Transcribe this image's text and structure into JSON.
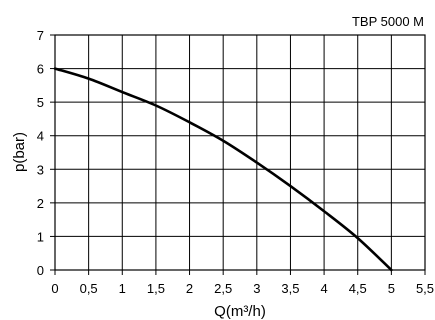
{
  "chart_data": {
    "type": "line",
    "title": "TBP 5000 M",
    "xlabel": "Q(m³/h)",
    "ylabel": "p(bar)",
    "xlim": [
      0,
      5.5
    ],
    "ylim": [
      0,
      7
    ],
    "grid": true,
    "x_ticks": [
      0,
      0.5,
      1,
      1.5,
      2,
      2.5,
      3,
      3.5,
      4,
      4.5,
      5,
      5.5
    ],
    "x_tick_labels": [
      "0",
      "0,5",
      "1",
      "1,5",
      "2",
      "2,5",
      "3",
      "3,5",
      "4",
      "4,5",
      "5",
      "5,5"
    ],
    "y_ticks": [
      0,
      1,
      2,
      3,
      4,
      5,
      6,
      7
    ],
    "y_tick_labels": [
      "0",
      "1",
      "2",
      "3",
      "4",
      "5",
      "6",
      "7"
    ],
    "series": [
      {
        "color": "#000000",
        "x": [
          0,
          0.5,
          1,
          1.5,
          2,
          2.5,
          3,
          3.5,
          4,
          4.5,
          5
        ],
        "y": [
          6.0,
          5.7,
          5.3,
          4.9,
          4.4,
          3.85,
          3.2,
          2.5,
          1.75,
          0.95,
          0.0
        ]
      }
    ]
  }
}
